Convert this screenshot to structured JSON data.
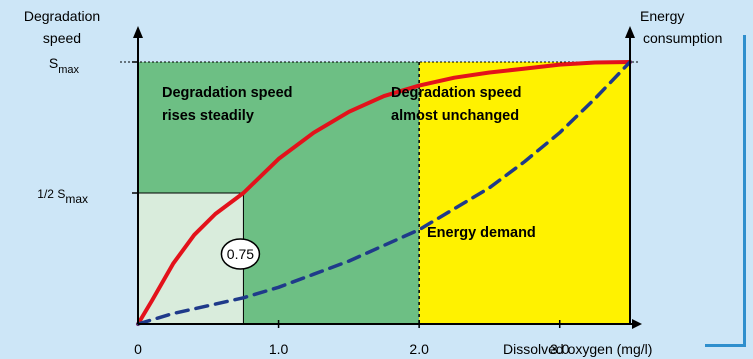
{
  "colors": {
    "background": "#cde6f7",
    "dark_green_region": "#6dbf84",
    "light_green_region": "#d9ecdc",
    "yellow_region": "#fff200",
    "degradation_curve": "#e3121b",
    "energy_curve": "#1f3a8a",
    "axis": "#000000",
    "frame_edge": "#2f8fcd"
  },
  "chart_data": {
    "type": "line",
    "xlim": [
      0,
      3.5
    ],
    "ylim": [
      0,
      1
    ],
    "y_axis_left": {
      "label_line1": "Degradation",
      "label_line2": "speed",
      "ticks": [
        {
          "value": 1.0,
          "prefix": "S",
          "sub": "max"
        },
        {
          "value": 0.5,
          "prefix": "1/2 S",
          "sub": "max"
        }
      ]
    },
    "y_axis_right": {
      "label_line1": "Energy",
      "label_line2": "consumption"
    },
    "x_axis": {
      "label": "Dissolved oxygen (mg/l)",
      "ticks": [
        "0",
        "1.0",
        "2.0",
        "3.0"
      ],
      "tick_values": [
        0,
        1,
        2,
        3
      ]
    },
    "regions": [
      {
        "name": "steady-rise",
        "x_from": 0,
        "x_to": 2.0,
        "label_line1": "Degradation speed",
        "label_line2": "rises steadily"
      },
      {
        "name": "unchanged",
        "x_from": 2.0,
        "x_to": 3.5,
        "label_line1": "Degradation speed",
        "label_line2": "almost unchanged"
      }
    ],
    "half_saturation_box": {
      "x_from": 0,
      "x_to": 0.75,
      "y_to": 0.5
    },
    "annotations": {
      "k_value": "0.75",
      "k_value_x": 0.75,
      "energy_label": "Energy demand"
    },
    "series": [
      {
        "style": "solid",
        "x": [
          0,
          0.1,
          0.25,
          0.4,
          0.55,
          0.75,
          1.0,
          1.25,
          1.5,
          1.75,
          2.0,
          2.25,
          2.5,
          2.75,
          3.0,
          3.25,
          3.5
        ],
        "y": [
          0,
          0.09,
          0.23,
          0.34,
          0.42,
          0.5,
          0.63,
          0.73,
          0.81,
          0.87,
          0.91,
          0.94,
          0.96,
          0.975,
          0.99,
          0.998,
          1.0
        ]
      },
      {
        "style": "dashed",
        "x": [
          0,
          0.25,
          0.5,
          0.75,
          1.0,
          1.25,
          1.5,
          1.75,
          2.0,
          2.25,
          2.5,
          2.75,
          3.0,
          3.25,
          3.5
        ],
        "y": [
          0,
          0.04,
          0.07,
          0.1,
          0.14,
          0.19,
          0.24,
          0.3,
          0.36,
          0.44,
          0.52,
          0.62,
          0.73,
          0.86,
          1.0
        ]
      }
    ]
  }
}
